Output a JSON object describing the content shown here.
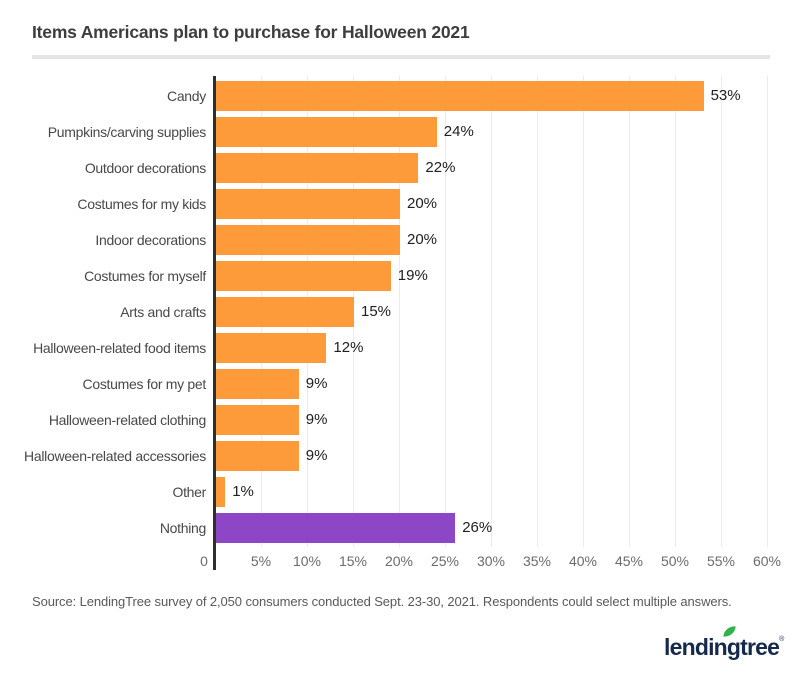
{
  "title": "Items Americans plan to purchase for Halloween 2021",
  "source": "Source: LendingTree survey of 2,050 consumers conducted Sept. 23-30, 2021. Respondents could select multiple answers.",
  "logo": {
    "text": "lendingtree",
    "registered": "®"
  },
  "colors": {
    "bar": "#fd9a39",
    "highlight_bar": "#8d46c6",
    "axis_line": "#2f2f2f",
    "gridline": "#ebebeb",
    "divider": "#e4e4e4",
    "title_text": "#3d3d3d",
    "category_text": "#484848",
    "value_text": "#202020",
    "tick_text": "#6b6b6b",
    "source_text": "#595959",
    "logo_text": "#15294b",
    "logo_leaf": "#2fb34a"
  },
  "chart_data": {
    "type": "bar",
    "orientation": "horizontal",
    "title": "Items Americans plan to purchase for Halloween 2021",
    "categories": [
      "Candy",
      "Pumpkins/carving supplies",
      "Outdoor decorations",
      "Costumes for my kids",
      "Indoor decorations",
      "Costumes for myself",
      "Arts and crafts",
      "Halloween-related food items",
      "Costumes for my pet",
      "Halloween-related clothing",
      "Halloween-related accessories",
      "Other",
      "Nothing"
    ],
    "values": [
      53,
      24,
      22,
      20,
      20,
      19,
      15,
      12,
      9,
      9,
      9,
      1,
      26
    ],
    "value_labels": [
      "53%",
      "24%",
      "22%",
      "20%",
      "20%",
      "19%",
      "15%",
      "12%",
      "9%",
      "9%",
      "9%",
      "1%",
      "26%"
    ],
    "highlight_category": "Nothing",
    "x_ticks": [
      "0",
      "5%",
      "10%",
      "15%",
      "20%",
      "25%",
      "30%",
      "35%",
      "40%",
      "45%",
      "50%",
      "55%",
      "60%"
    ],
    "xlim": [
      0,
      60
    ],
    "grid": "vertical",
    "legend": "none",
    "xlabel": "",
    "ylabel": ""
  }
}
